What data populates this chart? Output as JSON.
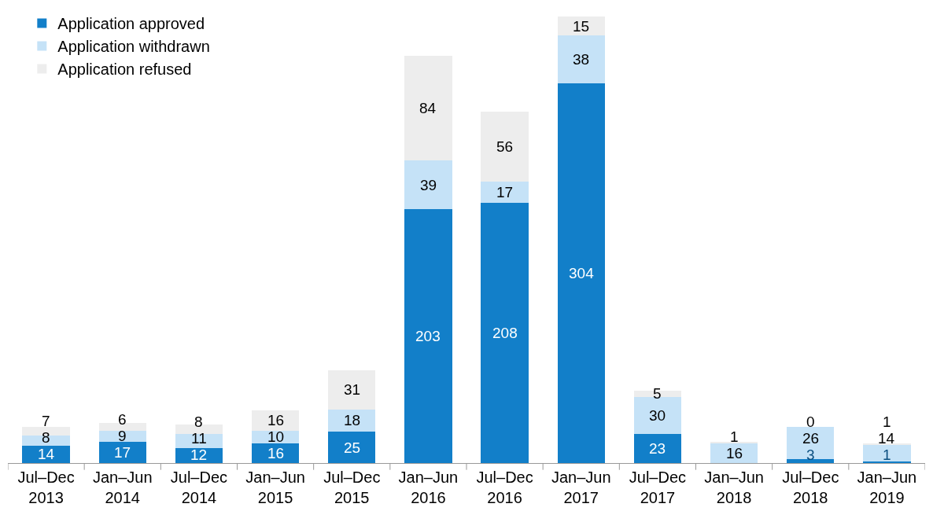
{
  "chart_data": {
    "type": "bar",
    "stacked": true,
    "tick_labels": "x",
    "grid": false,
    "legend": "top left",
    "categories": [
      "Jul–Dec 2013",
      "Jan–Jun 2014",
      "Jul–Dec 2014",
      "Jan–Jun 2015",
      "Jul–Dec 2015",
      "Jan–Jun 2016",
      "Jul–Dec 2016",
      "Jan–Jun 2017",
      "Jul–Dec 2017",
      "Jan–Jun 2018",
      "Jul–Dec 2018",
      "Jan–Jun 2019"
    ],
    "series": [
      {
        "name": "Application approved",
        "color": "#127fc9",
        "values": [
          14,
          17,
          12,
          16,
          25,
          203,
          208,
          304,
          23,
          0,
          3,
          1
        ],
        "value_labels": [
          "14",
          "17",
          "12",
          "16",
          "25",
          "203",
          "208",
          "304",
          "23",
          null,
          "3",
          "1"
        ]
      },
      {
        "name": "Application withdrawn",
        "color": "#c5e2f7",
        "values": [
          8,
          9,
          11,
          10,
          18,
          39,
          17,
          38,
          30,
          16,
          26,
          14
        ],
        "value_labels": [
          "8",
          "9",
          "11",
          "10",
          "18",
          "39",
          "17",
          "38",
          "30",
          "16",
          "26",
          "14"
        ]
      },
      {
        "name": "Application refused",
        "color": "#ededed",
        "values": [
          7,
          6,
          8,
          16,
          31,
          84,
          56,
          15,
          5,
          1,
          0,
          1
        ],
        "value_labels": [
          "7",
          "6",
          "8",
          "16",
          "31",
          "84",
          "56",
          "15",
          "5",
          "1",
          "0",
          "1"
        ]
      }
    ]
  }
}
